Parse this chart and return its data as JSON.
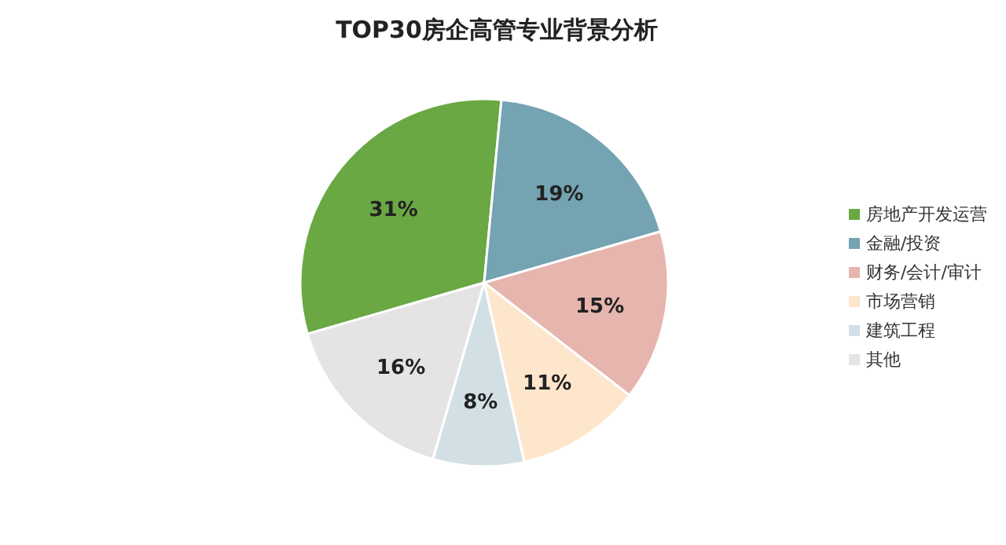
{
  "chart_data": {
    "type": "pie",
    "title": "TOP30房企高管专业背景分析",
    "categories": [
      "房地产开发运营",
      "金融/投资",
      "财务/会计/审计",
      "市场营销",
      "建筑工程",
      "其他"
    ],
    "values": [
      31,
      19,
      15,
      11,
      8,
      16
    ],
    "colors": [
      "#6aa843",
      "#74a3b2",
      "#e6b5ae",
      "#fde6cc",
      "#d2e0e6",
      "#e6e3e5"
    ],
    "value_labels": [
      "31%",
      "19%",
      "15%",
      "11%",
      "8%",
      "16%"
    ],
    "legend": "right"
  }
}
